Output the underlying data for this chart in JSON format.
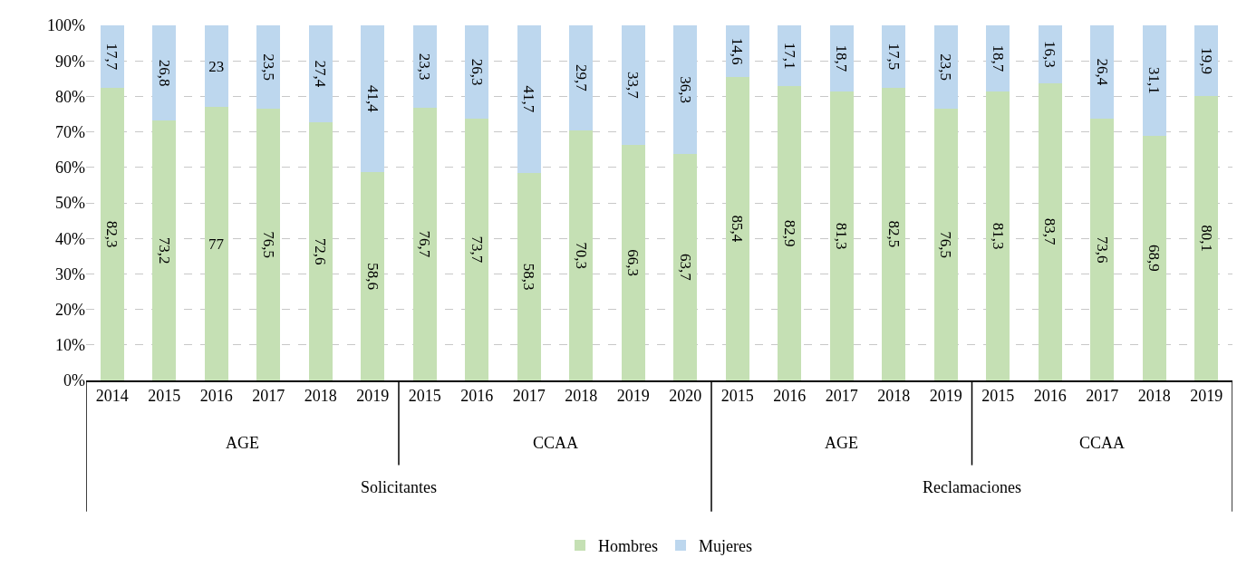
{
  "chart_data": {
    "type": "bar",
    "stacked": true,
    "categories": [
      "2014",
      "2015",
      "2016",
      "2017",
      "2018",
      "2019",
      "2015",
      "2016",
      "2017",
      "2018",
      "2019",
      "2020",
      "2015",
      "2016",
      "2017",
      "2018",
      "2019",
      "2015",
      "2016",
      "2017",
      "2018",
      "2019"
    ],
    "series": [
      {
        "name": "Hombres",
        "color": "#c5e0b4",
        "values": [
          82.3,
          73.2,
          77,
          76.5,
          72.6,
          58.6,
          76.7,
          73.7,
          58.3,
          70.3,
          66.3,
          63.7,
          85.4,
          82.9,
          81.3,
          82.5,
          76.5,
          81.3,
          83.7,
          73.6,
          68.9,
          80.1
        ],
        "value_labels": [
          "82,3",
          "73,2",
          "77",
          "76,5",
          "72,6",
          "58,6",
          "76,7",
          "73,7",
          "58,3",
          "70,3",
          "66,3",
          "63,7",
          "85,4",
          "82,9",
          "81,3",
          "82,5",
          "76,5",
          "81,3",
          "83,7",
          "73,6",
          "68,9",
          "80,1"
        ]
      },
      {
        "name": "Mujeres",
        "color": "#bdd7ee",
        "values": [
          17.7,
          26.8,
          23,
          23.5,
          27.4,
          41.4,
          23.3,
          26.3,
          41.7,
          29.7,
          33.7,
          36.3,
          14.6,
          17.1,
          18.7,
          17.5,
          23.5,
          18.7,
          16.3,
          26.4,
          31.1,
          19.9
        ],
        "value_labels": [
          "17,7",
          "26,8",
          "23",
          "23,5",
          "27,4",
          "41,4",
          "23,3",
          "26,3",
          "41,7",
          "29,7",
          "33,7",
          "36,3",
          "14,6",
          "17,1",
          "18,7",
          "17,5",
          "23,5",
          "18,7",
          "16,3",
          "26,4",
          "31,1",
          "19,9"
        ]
      }
    ],
    "annotations": [
      "AGE",
      "CCAA",
      "AGE",
      "CCAA",
      "Solicitantes",
      "Reclamaciones"
    ],
    "ylim": [
      0,
      100
    ],
    "yticks": [
      {
        "value": 0,
        "label": "0%"
      },
      {
        "value": 10,
        "label": "10%"
      },
      {
        "value": 20,
        "label": "20%"
      },
      {
        "value": 30,
        "label": "30%"
      },
      {
        "value": 40,
        "label": "40%"
      },
      {
        "value": 50,
        "label": "50%"
      },
      {
        "value": 60,
        "label": "60%"
      },
      {
        "value": 70,
        "label": "70%"
      },
      {
        "value": 80,
        "label": "80%"
      },
      {
        "value": 90,
        "label": "90%"
      },
      {
        "value": 100,
        "label": "100%"
      }
    ],
    "grid": "y",
    "legend": "bottom"
  }
}
